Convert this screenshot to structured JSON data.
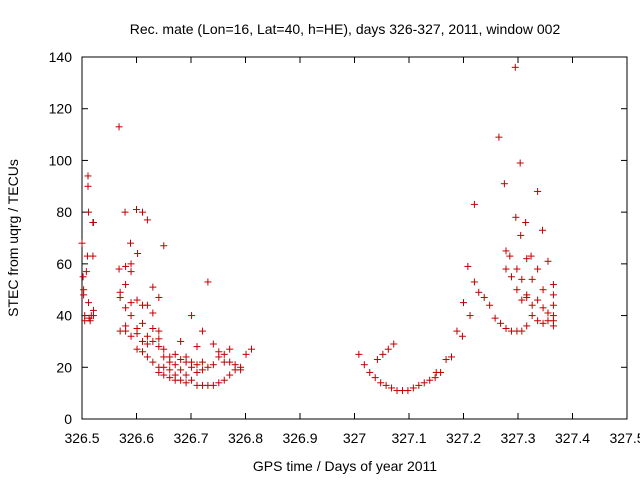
{
  "chart_data": {
    "type": "scatter",
    "title": "Rec. mate (Lon=16, Lat=40, h=HE), days 326-327, 2011, window 002",
    "xlabel": "GPS time / Days of year 2011",
    "ylabel": "STEC from uqrg / TECUs",
    "xlim": [
      326.5,
      327.5
    ],
    "ylim": [
      0,
      140
    ],
    "xticks": [
      "326.5",
      "326.6",
      "326.7",
      "326.8",
      "326.9",
      "327",
      "327.1",
      "327.2",
      "327.3",
      "327.4",
      "327.5"
    ],
    "yticks": [
      "0",
      "20",
      "40",
      "60",
      "80",
      "100",
      "120",
      "140"
    ],
    "grid": false,
    "marker": "+",
    "color": "#c00000",
    "series": [
      {
        "points": [
          [
            326.5,
            68
          ],
          [
            326.502,
            55
          ],
          [
            326.503,
            50
          ],
          [
            326.503,
            48
          ],
          [
            326.505,
            40
          ],
          [
            326.505,
            38
          ],
          [
            326.508,
            57
          ],
          [
            326.51,
            63
          ],
          [
            326.511,
            94
          ],
          [
            326.511,
            90
          ],
          [
            326.512,
            80
          ],
          [
            326.512,
            45
          ],
          [
            326.513,
            39
          ],
          [
            326.515,
            38
          ],
          [
            326.517,
            40
          ],
          [
            326.52,
            76
          ],
          [
            326.521,
            76
          ],
          [
            326.52,
            63
          ],
          [
            326.521,
            42
          ],
          [
            326.521,
            40
          ],
          [
            326.568,
            113
          ],
          [
            326.568,
            58
          ],
          [
            326.57,
            49
          ],
          [
            326.57,
            47
          ],
          [
            326.57,
            34
          ],
          [
            326.579,
            80
          ],
          [
            326.58,
            59
          ],
          [
            326.58,
            52
          ],
          [
            326.58,
            43
          ],
          [
            326.58,
            36
          ],
          [
            326.58,
            34
          ],
          [
            326.589,
            68
          ],
          [
            326.59,
            60
          ],
          [
            326.59,
            57
          ],
          [
            326.59,
            45
          ],
          [
            326.59,
            40
          ],
          [
            326.59,
            32
          ],
          [
            326.6,
            81
          ],
          [
            326.602,
            64
          ],
          [
            326.601,
            46
          ],
          [
            326.601,
            35
          ],
          [
            326.601,
            33
          ],
          [
            326.601,
            27
          ],
          [
            326.611,
            80
          ],
          [
            326.611,
            44
          ],
          [
            326.611,
            37
          ],
          [
            326.611,
            30
          ],
          [
            326.611,
            26
          ],
          [
            326.62,
            77
          ],
          [
            326.62,
            44
          ],
          [
            326.62,
            32
          ],
          [
            326.62,
            29
          ],
          [
            326.62,
            24
          ],
          [
            326.63,
            51
          ],
          [
            326.63,
            41
          ],
          [
            326.63,
            35
          ],
          [
            326.63,
            30
          ],
          [
            326.63,
            22
          ],
          [
            326.641,
            47
          ],
          [
            326.641,
            34
          ],
          [
            326.641,
            31
          ],
          [
            326.641,
            28
          ],
          [
            326.641,
            20
          ],
          [
            326.641,
            18
          ],
          [
            326.65,
            67
          ],
          [
            326.65,
            27
          ],
          [
            326.65,
            24
          ],
          [
            326.65,
            20
          ],
          [
            326.65,
            17
          ],
          [
            326.661,
            24
          ],
          [
            326.661,
            22
          ],
          [
            326.661,
            19
          ],
          [
            326.661,
            16
          ],
          [
            326.671,
            25
          ],
          [
            326.671,
            21
          ],
          [
            326.671,
            17
          ],
          [
            326.671,
            15
          ],
          [
            326.681,
            30
          ],
          [
            326.681,
            23
          ],
          [
            326.681,
            19
          ],
          [
            326.681,
            15
          ],
          [
            326.691,
            24
          ],
          [
            326.691,
            22
          ],
          [
            326.691,
            17
          ],
          [
            326.691,
            14
          ],
          [
            326.701,
            40
          ],
          [
            326.701,
            22
          ],
          [
            326.701,
            20
          ],
          [
            326.701,
            15
          ],
          [
            326.711,
            28
          ],
          [
            326.711,
            21
          ],
          [
            326.711,
            18
          ],
          [
            326.711,
            13
          ],
          [
            326.721,
            34
          ],
          [
            326.721,
            22
          ],
          [
            326.721,
            19
          ],
          [
            326.721,
            13
          ],
          [
            326.731,
            53
          ],
          [
            326.731,
            20
          ],
          [
            326.731,
            13
          ],
          [
            326.741,
            29
          ],
          [
            326.741,
            21
          ],
          [
            326.741,
            13
          ],
          [
            326.751,
            26
          ],
          [
            326.751,
            24
          ],
          [
            326.751,
            14
          ],
          [
            326.761,
            25
          ],
          [
            326.761,
            22
          ],
          [
            326.761,
            15
          ],
          [
            326.771,
            27
          ],
          [
            326.771,
            22
          ],
          [
            326.771,
            17
          ],
          [
            326.781,
            21
          ],
          [
            326.781,
            19
          ],
          [
            326.791,
            20
          ],
          [
            326.791,
            19
          ],
          [
            326.801,
            25
          ],
          [
            326.811,
            27
          ],
          [
            327.008,
            25
          ],
          [
            327.018,
            21
          ],
          [
            327.028,
            18
          ],
          [
            327.038,
            16
          ],
          [
            327.042,
            23
          ],
          [
            327.048,
            14
          ],
          [
            327.052,
            25
          ],
          [
            327.058,
            13
          ],
          [
            327.062,
            27
          ],
          [
            327.068,
            12
          ],
          [
            327.072,
            29
          ],
          [
            327.078,
            11
          ],
          [
            327.088,
            11
          ],
          [
            327.098,
            11
          ],
          [
            327.108,
            12
          ],
          [
            327.118,
            13
          ],
          [
            327.128,
            14
          ],
          [
            327.138,
            15
          ],
          [
            327.148,
            16
          ],
          [
            327.15,
            18
          ],
          [
            327.158,
            18
          ],
          [
            327.168,
            23
          ],
          [
            327.178,
            24
          ],
          [
            327.188,
            34
          ],
          [
            327.198,
            32
          ],
          [
            327.2,
            45
          ],
          [
            327.208,
            59
          ],
          [
            327.212,
            40
          ],
          [
            327.22,
            83
          ],
          [
            327.22,
            53
          ],
          [
            327.228,
            49
          ],
          [
            327.238,
            47
          ],
          [
            327.248,
            44
          ],
          [
            327.258,
            39
          ],
          [
            327.265,
            109
          ],
          [
            327.268,
            37
          ],
          [
            327.275,
            91
          ],
          [
            327.278,
            65
          ],
          [
            327.278,
            58
          ],
          [
            327.278,
            35
          ],
          [
            327.285,
            63
          ],
          [
            327.288,
            55
          ],
          [
            327.288,
            34
          ],
          [
            327.295,
            136
          ],
          [
            327.296,
            78
          ],
          [
            327.298,
            58
          ],
          [
            327.298,
            50
          ],
          [
            327.298,
            34
          ],
          [
            327.304,
            99
          ],
          [
            327.305,
            71
          ],
          [
            327.307,
            54
          ],
          [
            327.307,
            46
          ],
          [
            327.307,
            34
          ],
          [
            327.314,
            76
          ],
          [
            327.316,
            62
          ],
          [
            327.316,
            48
          ],
          [
            327.316,
            47
          ],
          [
            327.316,
            36
          ],
          [
            327.324,
            63
          ],
          [
            327.326,
            54
          ],
          [
            327.326,
            44
          ],
          [
            327.326,
            40
          ],
          [
            327.336,
            88
          ],
          [
            327.336,
            58
          ],
          [
            327.336,
            46
          ],
          [
            327.336,
            38
          ],
          [
            327.345,
            73
          ],
          [
            327.346,
            50
          ],
          [
            327.346,
            43
          ],
          [
            327.346,
            37
          ],
          [
            327.355,
            61
          ],
          [
            327.355,
            41
          ],
          [
            327.355,
            38
          ],
          [
            327.365,
            52
          ],
          [
            327.365,
            48
          ],
          [
            327.365,
            44
          ],
          [
            327.365,
            40
          ],
          [
            327.365,
            38
          ],
          [
            327.365,
            36
          ]
        ]
      }
    ]
  }
}
